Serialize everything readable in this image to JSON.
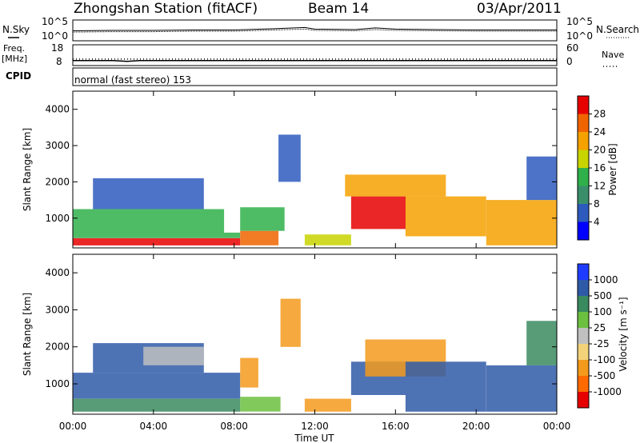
{
  "header": {
    "station": "Zhongshan Station (fitACF)",
    "beam": "Beam 14",
    "date": "03/Apr/2011"
  },
  "noise_panel": {
    "left_label": "N.Sky",
    "right_label": "N.Search",
    "tick_top": "10^5",
    "tick_bottom": "10^0"
  },
  "freq_panel": {
    "left_label_1": "Freq.",
    "left_label_2": "[MHz]",
    "right_label": "Nave",
    "left_ticks": [
      "18",
      "8"
    ],
    "right_ticks": [
      "60",
      "0"
    ]
  },
  "cpid_panel": {
    "label": "CPID",
    "text": "normal (fast stereo) 153"
  },
  "power_panel": {
    "ylabel": "Slant Range [km]",
    "yticks": [
      "1000",
      "2000",
      "3000",
      "4000"
    ],
    "colorbar": {
      "label": "Power [dB]",
      "ticks": [
        "4",
        "8",
        "12",
        "16",
        "20",
        "24",
        "28"
      ],
      "colors": [
        "#0000ff",
        "#2d5bbd",
        "#3a8f6a",
        "#2fb04a",
        "#c8d400",
        "#f5a100",
        "#f06400",
        "#e60000"
      ]
    }
  },
  "velocity_panel": {
    "ylabel": "Slant Range [km]",
    "yticks": [
      "1000",
      "2000",
      "3000",
      "4000"
    ],
    "colorbar": {
      "label": "Velocity [m s⁻¹]",
      "ticks": [
        "1000",
        "500",
        "100",
        "25",
        "-25",
        "-100",
        "-500",
        "-1000"
      ],
      "colors": [
        "#1e3cff",
        "#2f5aa8",
        "#3a8a5f",
        "#6cc040",
        "#c0c0c0",
        "#f3d37a",
        "#f39a1c",
        "#ff6a00",
        "#e60000"
      ]
    }
  },
  "time_axis": {
    "label": "Time UT",
    "ticks": [
      "00:00",
      "04:00",
      "08:00",
      "12:00",
      "16:00",
      "20:00",
      "00:00"
    ]
  },
  "chart_data": [
    {
      "type": "line",
      "panel": "noise",
      "x": [
        0,
        2,
        4,
        6,
        8,
        10,
        11.5,
        12,
        14,
        15,
        16,
        18,
        20,
        22,
        24
      ],
      "series": [
        {
          "name": "N.Sky",
          "values": [
            2.4,
            2.5,
            2.5,
            2.6,
            2.6,
            2.9,
            3.2,
            2.8,
            2.7,
            3.1,
            2.8,
            2.7,
            2.6,
            2.6,
            2.6
          ]
        },
        {
          "name": "N.Search",
          "values": [
            2.1,
            2.2,
            2.2,
            2.3,
            2.3,
            2.6,
            2.8,
            2.5,
            2.4,
            2.7,
            2.5,
            2.4,
            2.3,
            2.3,
            2.3
          ]
        }
      ],
      "xlim": [
        0,
        24
      ],
      "ylim": [
        0,
        5
      ]
    },
    {
      "type": "line",
      "panel": "frequency",
      "x": [
        0,
        2,
        2.7,
        3.3,
        4,
        8,
        12,
        16,
        20,
        24
      ],
      "series": [
        {
          "name": "Freq.",
          "values": [
            10.8,
            10.8,
            10.4,
            10.8,
            10.8,
            10.8,
            10.8,
            10.8,
            10.8,
            10.8
          ]
        },
        {
          "name": "Nave",
          "values": [
            22,
            22,
            22,
            22,
            22,
            22,
            22,
            22,
            22,
            22
          ]
        }
      ],
      "xlim": [
        0,
        24
      ]
    },
    {
      "type": "heatmap",
      "panel": "power",
      "xlim": [
        0,
        24
      ],
      "ylim": [
        180,
        4500
      ],
      "xlabel": "",
      "ylabel": "Slant Range [km]",
      "zlabel": "Power [dB]",
      "zlim": [
        0,
        30
      ],
      "regions": [
        {
          "t0": 0.0,
          "t1": 8.3,
          "r0": 250,
          "r1": 450,
          "value": 29
        },
        {
          "t0": 0.0,
          "t1": 8.3,
          "r0": 450,
          "r1": 600,
          "value": 12
        },
        {
          "t0": 0.0,
          "t1": 7.5,
          "r0": 600,
          "r1": 1250,
          "value": 14
        },
        {
          "t0": 1.0,
          "t1": 6.5,
          "r0": 1250,
          "r1": 2100,
          "value": 6
        },
        {
          "t0": 8.3,
          "t1": 10.2,
          "r0": 250,
          "r1": 650,
          "value": 25
        },
        {
          "t0": 8.3,
          "t1": 10.5,
          "r0": 650,
          "r1": 1300,
          "value": 12
        },
        {
          "t0": 10.2,
          "t1": 11.3,
          "r0": 2000,
          "r1": 3300,
          "value": 6
        },
        {
          "t0": 11.5,
          "t1": 13.8,
          "r0": 250,
          "r1": 550,
          "value": 18
        },
        {
          "t0": 13.8,
          "t1": 16.5,
          "r0": 700,
          "r1": 1600,
          "value": 28
        },
        {
          "t0": 13.5,
          "t1": 18.5,
          "r0": 1600,
          "r1": 2200,
          "value": 20
        },
        {
          "t0": 16.5,
          "t1": 20.5,
          "r0": 500,
          "r1": 1600,
          "value": 22
        },
        {
          "t0": 20.5,
          "t1": 24.0,
          "r0": 250,
          "r1": 1500,
          "value": 20
        },
        {
          "t0": 22.5,
          "t1": 24.0,
          "r0": 1500,
          "r1": 2700,
          "value": 5
        }
      ]
    },
    {
      "type": "heatmap",
      "panel": "velocity",
      "xlim": [
        0,
        24
      ],
      "ylim": [
        180,
        4500
      ],
      "xlabel": "Time UT",
      "ylabel": "Slant Range [km]",
      "zlabel": "Velocity [m s⁻¹]",
      "zlim": [
        -1000,
        1000
      ],
      "regions": [
        {
          "t0": 0.0,
          "t1": 8.3,
          "r0": 250,
          "r1": 600,
          "value": 100
        },
        {
          "t0": 0.0,
          "t1": 8.3,
          "r0": 600,
          "r1": 1300,
          "value": 600
        },
        {
          "t0": 1.0,
          "t1": 6.5,
          "r0": 1300,
          "r1": 2100,
          "value": 500
        },
        {
          "t0": 3.5,
          "t1": 6.5,
          "r0": 1500,
          "r1": 2000,
          "value": 0
        },
        {
          "t0": 8.3,
          "t1": 10.3,
          "r0": 250,
          "r1": 650,
          "value": 80
        },
        {
          "t0": 8.3,
          "t1": 9.2,
          "r0": 900,
          "r1": 1700,
          "value": -400
        },
        {
          "t0": 10.3,
          "t1": 11.3,
          "r0": 2000,
          "r1": 3300,
          "value": -400
        },
        {
          "t0": 11.5,
          "t1": 13.8,
          "r0": 250,
          "r1": 600,
          "value": -200
        },
        {
          "t0": 13.8,
          "t1": 16.5,
          "r0": 700,
          "r1": 1600,
          "value": 600
        },
        {
          "t0": 14.5,
          "t1": 18.5,
          "r0": 1200,
          "r1": 2200,
          "value": -300
        },
        {
          "t0": 16.5,
          "t1": 20.5,
          "r0": 250,
          "r1": 1600,
          "value": 600
        },
        {
          "t0": 20.5,
          "t1": 24.0,
          "r0": 250,
          "r1": 1500,
          "value": 600
        },
        {
          "t0": 22.5,
          "t1": 24.0,
          "r0": 1500,
          "r1": 2700,
          "value": 100
        }
      ]
    }
  ]
}
